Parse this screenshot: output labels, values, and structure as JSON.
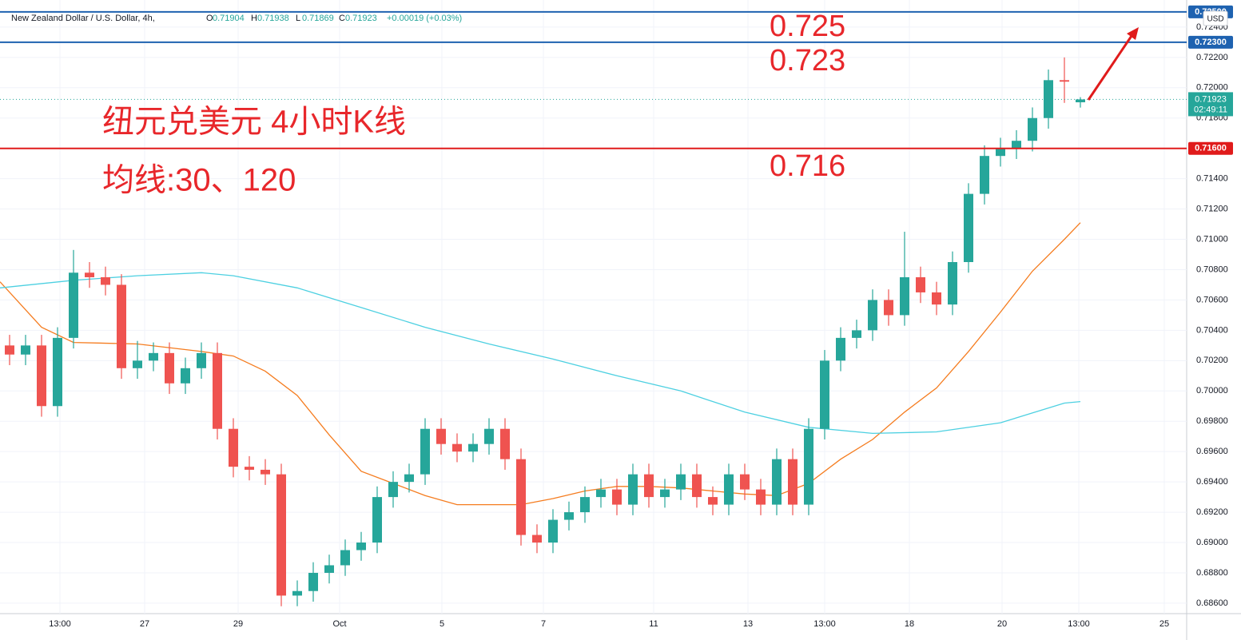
{
  "chart_data": {
    "type": "candlestick",
    "symbol": "New Zealand Dollar / U.S. Dollar, 4h,",
    "ohlc_labels": [
      "O",
      "H",
      "L",
      "C"
    ],
    "change": "+0.00019 (+0.03%)",
    "currency": "USD",
    "countdown": "02:49:11",
    "annotations": [
      "纽元兑美元 4小时K线",
      "均线:30、120"
    ],
    "up_color": "#26a69a",
    "down_color": "#ef5350",
    "open": [
      0.703,
      0.7024,
      0.703,
      0.699,
      0.7035,
      0.7078,
      0.7075,
      0.707,
      0.7015,
      0.702,
      0.7025,
      0.7005,
      0.7015,
      0.7025,
      0.6975,
      0.695,
      0.6948,
      0.6945,
      0.6865,
      0.6868,
      0.688,
      0.6885,
      0.6895,
      0.69,
      0.693,
      0.694,
      0.6945,
      0.6975,
      0.6965,
      0.696,
      0.6965,
      0.6975,
      0.6955,
      0.6905,
      0.69,
      0.6915,
      0.692,
      0.693,
      0.6935,
      0.6925,
      0.6945,
      0.693,
      0.6935,
      0.6945,
      0.693,
      0.6925,
      0.6945,
      0.6935,
      0.6925,
      0.6955,
      0.6925,
      0.6975,
      0.702,
      0.7035,
      0.704,
      0.706,
      0.705,
      0.7075,
      0.7065,
      0.7057,
      0.7085,
      0.713,
      0.7155,
      0.716,
      0.7165,
      0.718,
      0.7205,
      0.71904
    ],
    "high": [
      0.7037,
      0.7037,
      0.7037,
      0.7042,
      0.7093,
      0.7085,
      0.7082,
      0.7077,
      0.7033,
      0.7032,
      0.7032,
      0.7022,
      0.7032,
      0.7032,
      0.6982,
      0.6957,
      0.6955,
      0.6952,
      0.6875,
      0.6887,
      0.6892,
      0.6902,
      0.6907,
      0.6937,
      0.6947,
      0.6952,
      0.6982,
      0.6982,
      0.6972,
      0.6972,
      0.6982,
      0.6982,
      0.6962,
      0.6912,
      0.6922,
      0.6927,
      0.6937,
      0.6942,
      0.6942,
      0.6952,
      0.6952,
      0.6942,
      0.6952,
      0.6952,
      0.6937,
      0.6952,
      0.6952,
      0.6942,
      0.6962,
      0.6962,
      0.6982,
      0.7027,
      0.7042,
      0.7047,
      0.7067,
      0.7067,
      0.7105,
      0.7082,
      0.7072,
      0.7092,
      0.7137,
      0.7162,
      0.7167,
      0.7172,
      0.7187,
      0.7212,
      0.722,
      0.71938
    ],
    "low": [
      0.7017,
      0.7017,
      0.6983,
      0.6983,
      0.7028,
      0.7068,
      0.7063,
      0.7008,
      0.7008,
      0.7013,
      0.6998,
      0.6998,
      0.7008,
      0.6968,
      0.6943,
      0.6941,
      0.6938,
      0.6858,
      0.6858,
      0.6861,
      0.6873,
      0.6878,
      0.6888,
      0.6893,
      0.6923,
      0.6933,
      0.6938,
      0.6958,
      0.6953,
      0.6953,
      0.6958,
      0.6948,
      0.6898,
      0.6893,
      0.6893,
      0.6908,
      0.6913,
      0.6923,
      0.6918,
      0.6918,
      0.6923,
      0.6923,
      0.6928,
      0.6923,
      0.6918,
      0.6918,
      0.6928,
      0.6918,
      0.6918,
      0.6918,
      0.6918,
      0.6968,
      0.7013,
      0.7028,
      0.7033,
      0.7043,
      0.7043,
      0.7058,
      0.705,
      0.705,
      0.7078,
      0.7123,
      0.7148,
      0.7153,
      0.7158,
      0.7173,
      0.719,
      0.71869
    ],
    "close": [
      0.7024,
      0.703,
      0.699,
      0.7035,
      0.7078,
      0.7075,
      0.707,
      0.7015,
      0.702,
      0.7025,
      0.7005,
      0.7015,
      0.7025,
      0.6975,
      0.695,
      0.6948,
      0.6945,
      0.6865,
      0.6868,
      0.688,
      0.6885,
      0.6895,
      0.69,
      0.693,
      0.694,
      0.6945,
      0.6975,
      0.6965,
      0.696,
      0.6965,
      0.6975,
      0.6955,
      0.6905,
      0.69,
      0.6915,
      0.692,
      0.693,
      0.6935,
      0.6925,
      0.6945,
      0.693,
      0.6935,
      0.6945,
      0.693,
      0.6925,
      0.6945,
      0.6935,
      0.6925,
      0.6955,
      0.6925,
      0.6975,
      0.702,
      0.7035,
      0.704,
      0.706,
      0.705,
      0.7075,
      0.7065,
      0.7057,
      0.7085,
      0.713,
      0.7155,
      0.716,
      0.7165,
      0.718,
      0.7205,
      0.7204,
      0.71923
    ],
    "series": [
      {
        "color": "#f57c1f",
        "x": [
          -0.6,
          2,
          4,
          8,
          12,
          14,
          16,
          18,
          20,
          22,
          24,
          26,
          28,
          30,
          32,
          34,
          36,
          38,
          40,
          42,
          44,
          46,
          48,
          50,
          52,
          54,
          56,
          58,
          60,
          62,
          64,
          66,
          67
        ],
        "values": [
          0.7072,
          0.7042,
          0.7032,
          0.7031,
          0.7026,
          0.7023,
          0.7013,
          0.6997,
          0.6971,
          0.6947,
          0.6939,
          0.6931,
          0.6925,
          0.6925,
          0.6925,
          0.6929,
          0.6934,
          0.6937,
          0.6937,
          0.6936,
          0.6934,
          0.6932,
          0.6931,
          0.6939,
          0.6955,
          0.6968,
          0.6986,
          0.7002,
          0.7026,
          0.7052,
          0.7079,
          0.71,
          0.7111
        ]
      },
      {
        "color": "#4dd0e1",
        "x": [
          -0.6,
          4,
          8,
          12,
          14,
          18,
          22,
          26,
          30,
          34,
          38,
          42,
          46,
          50,
          54,
          58,
          62,
          66,
          67
        ],
        "values": [
          0.7068,
          0.7073,
          0.7076,
          0.7078,
          0.7076,
          0.7068,
          0.7055,
          0.7042,
          0.7031,
          0.7021,
          0.701,
          0.7,
          0.6986,
          0.6976,
          0.6972,
          0.6973,
          0.6979,
          0.6992,
          0.6993
        ]
      }
    ],
    "levels": [
      {
        "value": 0.725,
        "label": "0.725",
        "tag": "0.72500",
        "color": "#1e62b0"
      },
      {
        "value": 0.723,
        "label": "0.723",
        "tag": "0.72300",
        "color": "#1e62b0"
      },
      {
        "value": 0.716,
        "label": "0.716",
        "tag": "0.71600",
        "color": "#e01b1b"
      }
    ],
    "last_price": {
      "value": 0.71923,
      "label": "0.71923"
    },
    "xlim": [
      -0.6,
      73.65
    ],
    "ylim": [
      0.68531,
      0.72526
    ],
    "xticks": [
      {
        "value": 3.15,
        "label": "13:00"
      },
      {
        "value": 8.45,
        "label": "27"
      },
      {
        "value": 14.3,
        "label": "29"
      },
      {
        "value": 20.65,
        "label": "Oct"
      },
      {
        "value": 27.05,
        "label": "5"
      },
      {
        "value": 33.4,
        "label": "7"
      },
      {
        "value": 40.3,
        "label": "11"
      },
      {
        "value": 46.2,
        "label": "13"
      },
      {
        "value": 51,
        "label": "13:00"
      },
      {
        "value": 56.3,
        "label": "18"
      },
      {
        "value": 62.1,
        "label": "20"
      },
      {
        "value": 66.9,
        "label": "13:00"
      },
      {
        "value": 72.25,
        "label": "25"
      }
    ],
    "yticks": [
      {
        "value": 0.686,
        "label": "0.68600"
      },
      {
        "value": 0.688,
        "label": "0.68800"
      },
      {
        "value": 0.69,
        "label": "0.69000"
      },
      {
        "value": 0.692,
        "label": "0.69200"
      },
      {
        "value": 0.694,
        "label": "0.69400"
      },
      {
        "value": 0.696,
        "label": "0.69600"
      },
      {
        "value": 0.698,
        "label": "0.69800"
      },
      {
        "value": 0.7,
        "label": "0.70000"
      },
      {
        "value": 0.702,
        "label": "0.70200"
      },
      {
        "value": 0.704,
        "label": "0.70400"
      },
      {
        "value": 0.706,
        "label": "0.70600"
      },
      {
        "value": 0.708,
        "label": "0.70800"
      },
      {
        "value": 0.71,
        "label": "0.71000"
      },
      {
        "value": 0.712,
        "label": "0.71200"
      },
      {
        "value": 0.714,
        "label": "0.71400"
      },
      {
        "value": 0.716,
        "label": "0.71600"
      },
      {
        "value": 0.718,
        "label": "0.71800"
      },
      {
        "value": 0.72,
        "label": "0.72000"
      },
      {
        "value": 0.722,
        "label": "0.72200"
      },
      {
        "value": 0.724,
        "label": "0.72400"
      }
    ],
    "grid": true
  }
}
